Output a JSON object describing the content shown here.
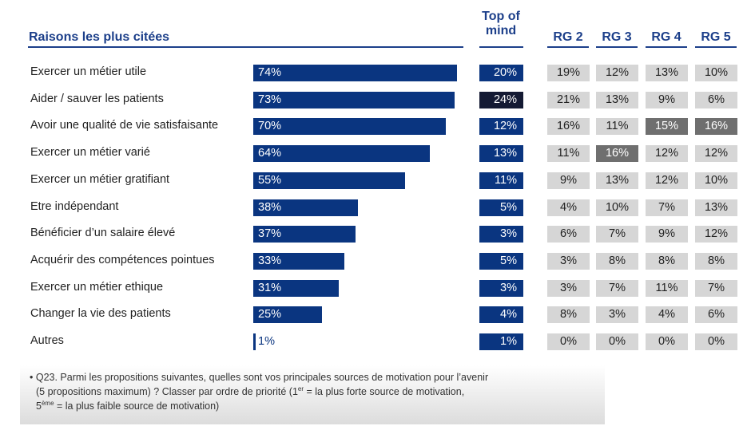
{
  "chart_data": {
    "type": "bar",
    "title": "Raisons les plus citées",
    "categories": [
      "Exercer un métier utile",
      "Aider / sauver les patients",
      "Avoir une qualité de vie satisfaisante",
      "Exercer un métier varié",
      "Exercer un métier gratifiant",
      "Etre indépendant",
      "Bénéficier d’un salaire élevé",
      "Acquérir des compétences pointues",
      "Exercer un métier ethique",
      "Changer la vie des patients",
      "Autres"
    ],
    "values": [
      74,
      73,
      70,
      64,
      55,
      38,
      37,
      33,
      31,
      25,
      1
    ],
    "value_labels": [
      "74%",
      "73%",
      "70%",
      "64%",
      "55%",
      "38%",
      "37%",
      "33%",
      "31%",
      "25%",
      "1%"
    ],
    "xlim": [
      0,
      100
    ],
    "columns": {
      "top_of_mind": {
        "header_line1": "Top of",
        "header_line2": "mind",
        "values": [
          "20%",
          "24%",
          "12%",
          "13%",
          "11%",
          "5%",
          "3%",
          "5%",
          "3%",
          "4%",
          "1%"
        ],
        "highlight": [
          false,
          true,
          false,
          false,
          false,
          false,
          false,
          false,
          false,
          false,
          false
        ]
      },
      "rg": [
        {
          "header": "RG 2",
          "values": [
            "19%",
            "21%",
            "16%",
            "11%",
            "9%",
            "4%",
            "6%",
            "3%",
            "3%",
            "8%",
            "0%"
          ],
          "highlight": [
            false,
            false,
            false,
            false,
            false,
            false,
            false,
            false,
            false,
            false,
            false
          ]
        },
        {
          "header": "RG 3",
          "values": [
            "12%",
            "13%",
            "11%",
            "16%",
            "13%",
            "10%",
            "7%",
            "8%",
            "7%",
            "3%",
            "0%"
          ],
          "highlight": [
            false,
            false,
            false,
            true,
            false,
            false,
            false,
            false,
            false,
            false,
            false
          ]
        },
        {
          "header": "RG 4",
          "values": [
            "13%",
            "9%",
            "15%",
            "12%",
            "12%",
            "7%",
            "9%",
            "8%",
            "11%",
            "4%",
            "0%"
          ],
          "highlight": [
            false,
            false,
            true,
            false,
            false,
            false,
            false,
            false,
            false,
            false,
            false
          ]
        },
        {
          "header": "RG 5",
          "values": [
            "10%",
            "6%",
            "16%",
            "12%",
            "10%",
            "13%",
            "12%",
            "8%",
            "7%",
            "6%",
            "0%"
          ],
          "highlight": [
            false,
            false,
            true,
            false,
            false,
            false,
            false,
            false,
            false,
            false,
            false
          ]
        }
      ]
    },
    "colors": {
      "bar": "#0a3580",
      "top_of_mind_highlight": "#141a33",
      "rg_cell": "#d6d6d6",
      "rg_highlight": "#6f6f6f",
      "header": "#1c3f8a"
    }
  },
  "footnote": {
    "line1": "• Q23. Parmi les propositions suivantes, quelles sont vos principales sources de motivation pour l’avenir",
    "line2_a": "(5 propositions maximum) ? Classer par ordre de priorité (1",
    "line2_sup": "er",
    "line2_b": " = la plus forte source de motivation,",
    "line3_a": "5",
    "line3_sup": "ème",
    "line3_b": " = la plus faible source de motivation)"
  }
}
